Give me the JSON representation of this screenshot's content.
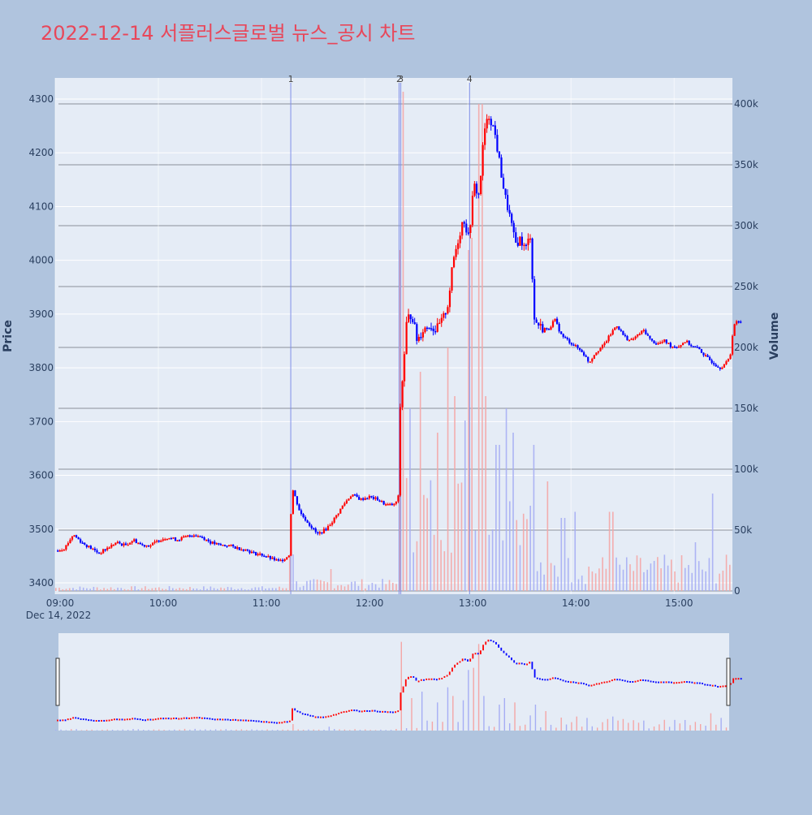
{
  "chart_data": {
    "type": "candlestick",
    "title": "2022-12-14 서플러스글로벌 뉴스_공시 차트",
    "ylabel": "Price",
    "y2label": "Volume",
    "ylim": [
      3385,
      4335
    ],
    "y2lim": [
      0,
      420000
    ],
    "y_ticks": [
      3400,
      3500,
      3600,
      3700,
      3800,
      3900,
      4000,
      4100,
      4200,
      4300
    ],
    "y_tick_labels": [
      "3400",
      "3500",
      "3600",
      "3700",
      "3800",
      "3900",
      "4000",
      "4100",
      "4200",
      "4300"
    ],
    "y2_ticks": [
      0,
      50000,
      100000,
      150000,
      200000,
      250000,
      300000,
      350000,
      400000
    ],
    "y2_tick_labels": [
      "0",
      "50k",
      "100k",
      "150k",
      "200k",
      "250k",
      "300k",
      "350k",
      "400k"
    ],
    "x_ticks": [
      "09:00",
      "10:00",
      "11:00",
      "12:00",
      "13:00",
      "14:00",
      "15:00"
    ],
    "x_date_label": "Dec 14, 2022",
    "colors": {
      "up": "#ff0000",
      "down": "#0000ff"
    },
    "news_markers": [
      {
        "label": "1",
        "time": "11:17"
      },
      {
        "label": "2",
        "time": "12:20"
      },
      {
        "label": "3",
        "time": "12:21"
      },
      {
        "label": "4",
        "time": "13:01"
      }
    ],
    "price_path": [
      [
        "09:00",
        3460
      ],
      [
        "09:05",
        3465
      ],
      [
        "09:10",
        3490
      ],
      [
        "09:15",
        3475
      ],
      [
        "09:20",
        3465
      ],
      [
        "09:25",
        3455
      ],
      [
        "09:30",
        3465
      ],
      [
        "09:35",
        3475
      ],
      [
        "09:40",
        3470
      ],
      [
        "09:45",
        3480
      ],
      [
        "09:50",
        3470
      ],
      [
        "09:55",
        3470
      ],
      [
        "10:00",
        3480
      ],
      [
        "10:05",
        3485
      ],
      [
        "10:10",
        3480
      ],
      [
        "10:15",
        3485
      ],
      [
        "10:20",
        3490
      ],
      [
        "10:25",
        3485
      ],
      [
        "10:30",
        3475
      ],
      [
        "10:35",
        3470
      ],
      [
        "10:40",
        3470
      ],
      [
        "10:45",
        3465
      ],
      [
        "10:50",
        3462
      ],
      [
        "10:55",
        3455
      ],
      [
        "11:00",
        3452
      ],
      [
        "11:05",
        3445
      ],
      [
        "11:10",
        3440
      ],
      [
        "11:15",
        3450
      ],
      [
        "11:16",
        3455
      ],
      [
        "11:17",
        3580
      ],
      [
        "11:22",
        3530
      ],
      [
        "11:27",
        3510
      ],
      [
        "11:32",
        3490
      ],
      [
        "11:37",
        3500
      ],
      [
        "11:42",
        3520
      ],
      [
        "11:47",
        3545
      ],
      [
        "11:52",
        3565
      ],
      [
        "11:57",
        3555
      ],
      [
        "12:02",
        3560
      ],
      [
        "12:07",
        3555
      ],
      [
        "12:12",
        3545
      ],
      [
        "12:17",
        3545
      ],
      [
        "12:19",
        3560
      ],
      [
        "12:20",
        3720
      ],
      [
        "12:22",
        3800
      ],
      [
        "12:24",
        3890
      ],
      [
        "12:27",
        3900
      ],
      [
        "12:30",
        3850
      ],
      [
        "12:33",
        3870
      ],
      [
        "12:37",
        3880
      ],
      [
        "12:41",
        3870
      ],
      [
        "12:45",
        3890
      ],
      [
        "12:48",
        3920
      ],
      [
        "12:51",
        4000
      ],
      [
        "12:54",
        4040
      ],
      [
        "12:57",
        4080
      ],
      [
        "13:00",
        4040
      ],
      [
        "13:03",
        4140
      ],
      [
        "13:06",
        4120
      ],
      [
        "13:09",
        4240
      ],
      [
        "13:12",
        4270
      ],
      [
        "13:15",
        4240
      ],
      [
        "13:18",
        4180
      ],
      [
        "13:21",
        4120
      ],
      [
        "13:24",
        4080
      ],
      [
        "13:27",
        4030
      ],
      [
        "13:30",
        4040
      ],
      [
        "13:33",
        4020
      ],
      [
        "13:36",
        4050
      ],
      [
        "13:38",
        3890
      ],
      [
        "13:42",
        3875
      ],
      [
        "13:46",
        3870
      ],
      [
        "13:50",
        3890
      ],
      [
        "13:54",
        3860
      ],
      [
        "13:58",
        3850
      ],
      [
        "14:02",
        3840
      ],
      [
        "14:06",
        3830
      ],
      [
        "14:10",
        3810
      ],
      [
        "14:14",
        3830
      ],
      [
        "14:18",
        3840
      ],
      [
        "14:22",
        3860
      ],
      [
        "14:26",
        3880
      ],
      [
        "14:30",
        3860
      ],
      [
        "14:34",
        3850
      ],
      [
        "14:38",
        3860
      ],
      [
        "14:42",
        3870
      ],
      [
        "14:46",
        3850
      ],
      [
        "14:50",
        3845
      ],
      [
        "14:54",
        3850
      ],
      [
        "14:58",
        3840
      ],
      [
        "15:02",
        3840
      ],
      [
        "15:06",
        3850
      ],
      [
        "15:10",
        3840
      ],
      [
        "15:14",
        3835
      ],
      [
        "15:18",
        3820
      ],
      [
        "15:22",
        3810
      ],
      [
        "15:26",
        3800
      ],
      [
        "15:30",
        3810
      ],
      [
        "15:32",
        3820
      ],
      [
        "15:34",
        3880
      ],
      [
        "15:36",
        3885
      ],
      [
        "15:39",
        3885
      ]
    ],
    "volume_spikes": [
      [
        "11:17",
        30000
      ],
      [
        "11:40",
        18000
      ],
      [
        "12:20",
        280000
      ],
      [
        "12:22",
        410000
      ],
      [
        "12:26",
        150000
      ],
      [
        "12:32",
        180000
      ],
      [
        "12:42",
        130000
      ],
      [
        "12:48",
        200000
      ],
      [
        "12:52",
        160000
      ],
      [
        "12:58",
        140000
      ],
      [
        "13:00",
        280000
      ],
      [
        "13:02",
        290000
      ],
      [
        "13:07",
        400000
      ],
      [
        "13:10",
        160000
      ],
      [
        "13:17",
        120000
      ],
      [
        "13:22",
        150000
      ],
      [
        "13:26",
        130000
      ],
      [
        "13:36",
        70000
      ],
      [
        "13:38",
        120000
      ],
      [
        "13:46",
        90000
      ],
      [
        "13:55",
        60000
      ],
      [
        "14:02",
        65000
      ],
      [
        "14:23",
        65000
      ],
      [
        "15:12",
        40000
      ],
      [
        "15:22",
        80000
      ],
      [
        "15:35",
        40000
      ]
    ]
  }
}
